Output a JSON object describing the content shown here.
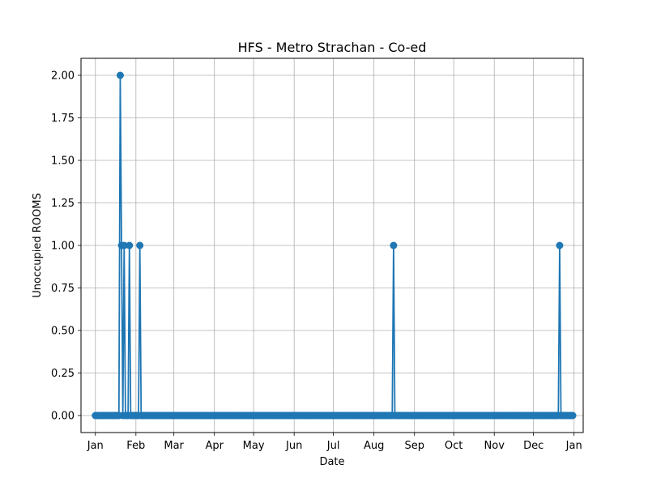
{
  "chart_data": {
    "type": "line",
    "title": "HFS - Metro Strachan - Co-ed",
    "xlabel": "Date",
    "ylabel": "Unoccupied ROOMS",
    "x_type": "date",
    "xlim": [
      "2023-12-21",
      "2025-01-08"
    ],
    "ylim": [
      -0.1,
      2.1
    ],
    "grid": true,
    "x_tick_labels": [
      "Jan",
      "Feb",
      "Mar",
      "Apr",
      "May",
      "Jun",
      "Jul",
      "Aug",
      "Sep",
      "Oct",
      "Nov",
      "Dec",
      "Jan"
    ],
    "x_tick_dates": [
      "2024-01-01",
      "2024-02-01",
      "2024-03-01",
      "2024-04-01",
      "2024-05-01",
      "2024-06-01",
      "2024-07-01",
      "2024-08-01",
      "2024-09-01",
      "2024-10-01",
      "2024-11-01",
      "2024-12-01",
      "2025-01-01"
    ],
    "y_tick_labels": [
      "0.00",
      "0.25",
      "0.50",
      "0.75",
      "1.00",
      "1.25",
      "1.50",
      "1.75",
      "2.00"
    ],
    "y_ticks": [
      0,
      0.25,
      0.5,
      0.75,
      1.0,
      1.25,
      1.5,
      1.75,
      2.0
    ],
    "series": [
      {
        "color": "#1f77b4",
        "marker": "circle",
        "x_start": "2024-01-01",
        "x_end": "2024-12-31",
        "default_value": 0,
        "nonzero_points": [
          {
            "x": "2024-01-20",
            "y": 2
          },
          {
            "x": "2024-01-21",
            "y": 1
          },
          {
            "x": "2024-01-23",
            "y": 1
          },
          {
            "x": "2024-01-27",
            "y": 1
          },
          {
            "x": "2024-02-04",
            "y": 1
          },
          {
            "x": "2024-08-16",
            "y": 1
          },
          {
            "x": "2024-12-21",
            "y": 1
          }
        ]
      }
    ]
  }
}
